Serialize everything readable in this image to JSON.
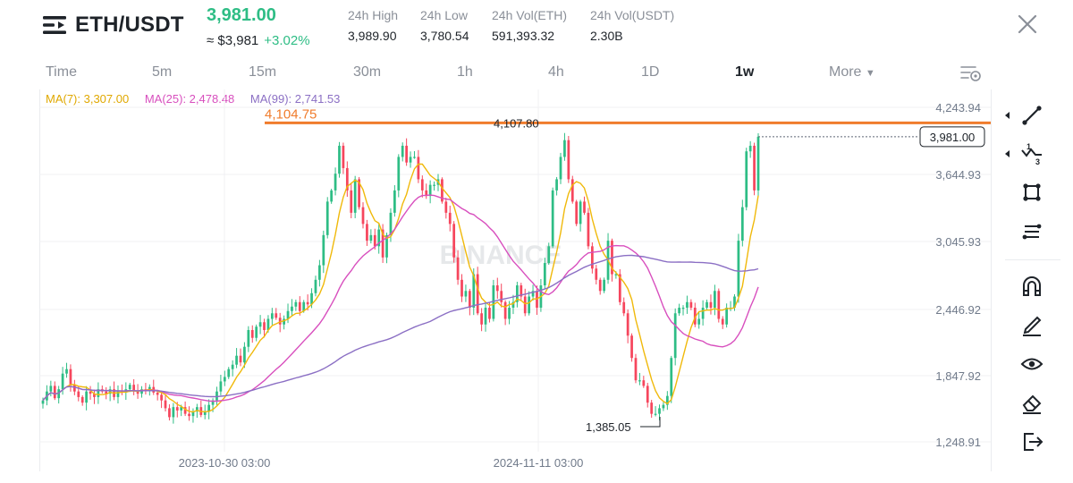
{
  "header": {
    "pair": "ETH/USDT",
    "last_price": "3,981.00",
    "usd_price": "≈ $3,981",
    "change_pct": "+3.02%",
    "stats": [
      {
        "label": "24h High",
        "value": "3,989.90"
      },
      {
        "label": "24h Low",
        "value": "3,780.54"
      },
      {
        "label": "24h Vol(ETH)",
        "value": "591,393.32"
      },
      {
        "label": "24h Vol(USDT)",
        "value": "2.30B"
      }
    ]
  },
  "timeframes": [
    "Time",
    "5m",
    "15m",
    "30m",
    "1h",
    "4h",
    "1D",
    "1w",
    "More"
  ],
  "active_timeframe": "1w",
  "indicators": {
    "ma7": "MA(7): 3,307.00",
    "ma25": "MA(25): 2,478.48",
    "ma99": "MA(99): 2,741.53"
  },
  "chart": {
    "price_axis": [
      "4,243.94",
      "3,644.93",
      "3,045.93",
      "2,446.92",
      "1,847.92",
      "1,248.91"
    ],
    "time_axis": [
      "2023-10-30 03:00",
      "2024-11-11 03:00"
    ],
    "current_price_tag": "3,981.00",
    "drawn_line_label": "4,104.75",
    "high_marker": "4,107.80",
    "low_marker": "1,385.05",
    "watermark": "BINANCE"
  },
  "chart_data": {
    "type": "candlestick",
    "interval": "1w",
    "yticks": [
      4243.94,
      3644.93,
      3045.93,
      2446.92,
      1847.92,
      1248.91
    ],
    "ylim": [
      1150,
      4330
    ],
    "last_price": 3981.0,
    "horizontal_line": 4104.75,
    "max_high": 4107.8,
    "min_low": 1385.05,
    "candles": [
      1620,
      1700,
      1750,
      1640,
      1720,
      1860,
      1900,
      1760,
      1700,
      1650,
      1600,
      1700,
      1680,
      1650,
      1720,
      1700,
      1680,
      1720,
      1650,
      1700,
      1690,
      1720,
      1760,
      1700,
      1680,
      1720,
      1710,
      1740,
      1690,
      1670,
      1620,
      1550,
      1470,
      1560,
      1530,
      1560,
      1500,
      1480,
      1520,
      1560,
      1490,
      1520,
      1580,
      1620,
      1700,
      1790,
      1830,
      1900,
      1940,
      2020,
      1960,
      2100,
      2250,
      2180,
      2280,
      2320,
      2250,
      2350,
      2400,
      2360,
      2300,
      2350,
      2420,
      2460,
      2500,
      2420,
      2500,
      2480,
      2580,
      2700,
      2830,
      3100,
      3400,
      3500,
      3650,
      3900,
      3700,
      3500,
      3300,
      3600,
      3350,
      3200,
      3050,
      3100,
      3000,
      3150,
      2900,
      3100,
      3300,
      3500,
      3800,
      3900,
      3750,
      3800,
      3800,
      3600,
      3500,
      3450,
      3550,
      3550,
      3600,
      3400,
      3300,
      3200,
      2900,
      2700,
      2550,
      2600,
      2450,
      2750,
      2400,
      2300,
      2450,
      2350,
      2650,
      2600,
      2500,
      2350,
      2450,
      2500,
      2650,
      2550,
      2400,
      2550,
      2600,
      2450,
      2650,
      2850,
      3000,
      3500,
      3600,
      3800,
      3950,
      3600,
      3400,
      3200,
      3400,
      3300,
      3000,
      2800,
      2700,
      2600,
      2700,
      3050,
      2750,
      2750,
      2500,
      2400,
      2200,
      2000,
      1800,
      1800,
      1750,
      1600,
      1500,
      1500,
      1550,
      1580,
      1660,
      2000,
      2400,
      2450,
      2450,
      2500,
      2450,
      2300,
      2350,
      2450,
      2500,
      2450,
      2600,
      2350,
      2300,
      2450,
      2450,
      2550,
      3050,
      3350,
      3850,
      3900,
      3500,
      3981
    ],
    "series": [
      {
        "name": "MA(7)",
        "color": "#f0b90b",
        "last": 3307.0
      },
      {
        "name": "MA(25)",
        "color": "#d84fbe",
        "last": 2478.48
      },
      {
        "name": "MA(99)",
        "color": "#8b6fc4",
        "last": 2741.53
      }
    ],
    "xticks": [
      "2023-10-30 03:00",
      "2024-11-11 03:00"
    ],
    "colors": {
      "up": "#2ebd85",
      "down": "#f6465d",
      "line": "#f07c2c"
    }
  },
  "toolbar": [
    "trend-line",
    "fib-retracement",
    "rectangle",
    "parallel-channel",
    "magnet",
    "pencil",
    "visibility",
    "eraser",
    "exit"
  ]
}
